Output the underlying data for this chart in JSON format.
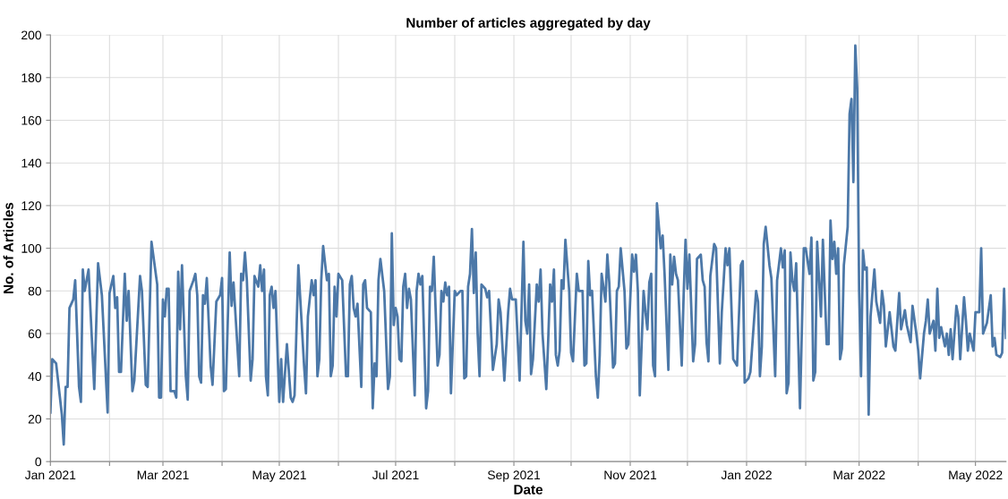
{
  "chart_data": {
    "type": "line",
    "title": "Number of articles aggregated by day",
    "xlabel": "Date",
    "ylabel": "No. of Articles",
    "xlim": [
      "2021-01-01",
      "2022-05-17"
    ],
    "xticks": [
      {
        "value": "2021-01-01",
        "label": "Jan 2021"
      },
      {
        "value": "2021-02-01",
        "label": null
      },
      {
        "value": "2021-03-01",
        "label": "Mar 2021"
      },
      {
        "value": "2021-04-01",
        "label": null
      },
      {
        "value": "2021-05-01",
        "label": "May 2021"
      },
      {
        "value": "2021-06-01",
        "label": null
      },
      {
        "value": "2021-07-01",
        "label": "Jul 2021"
      },
      {
        "value": "2021-08-01",
        "label": null
      },
      {
        "value": "2021-09-01",
        "label": "Sep 2021"
      },
      {
        "value": "2021-10-01",
        "label": null
      },
      {
        "value": "2021-11-01",
        "label": "Nov 2021"
      },
      {
        "value": "2021-12-01",
        "label": null
      },
      {
        "value": "2022-01-01",
        "label": "Jan 2022"
      },
      {
        "value": "2022-02-01",
        "label": null
      },
      {
        "value": "2022-03-01",
        "label": "Mar 2022"
      },
      {
        "value": "2022-04-01",
        "label": null
      },
      {
        "value": "2022-05-01",
        "label": "May 2022"
      }
    ],
    "ylim": [
      0,
      200
    ],
    "yticks": [
      0,
      20,
      40,
      60,
      80,
      100,
      120,
      140,
      160,
      180,
      200
    ],
    "grid": true,
    "series": [
      {
        "color": "#4c78a8",
        "x": [
          "2021-01-01",
          "2021-01-02",
          "2021-01-04",
          "2021-01-07",
          "2021-01-08",
          "2021-01-09",
          "2021-01-10",
          "2021-01-11",
          "2021-01-13",
          "2021-01-14",
          "2021-01-16",
          "2021-01-17",
          "2021-01-18",
          "2021-01-19",
          "2021-01-21",
          "2021-01-24",
          "2021-01-26",
          "2021-01-28",
          "2021-01-31",
          "2021-02-01",
          "2021-02-03",
          "2021-02-04",
          "2021-02-05",
          "2021-02-06",
          "2021-02-07",
          "2021-02-09",
          "2021-02-10",
          "2021-02-11",
          "2021-02-13",
          "2021-02-14",
          "2021-02-17",
          "2021-02-18",
          "2021-02-20",
          "2021-02-21",
          "2021-02-23",
          "2021-02-26",
          "2021-02-27",
          "2021-02-28",
          "2021-03-01",
          "2021-03-02",
          "2021-03-03",
          "2021-03-04",
          "2021-03-05",
          "2021-03-07",
          "2021-03-08",
          "2021-03-09",
          "2021-03-10",
          "2021-03-11",
          "2021-03-13",
          "2021-03-14",
          "2021-03-15",
          "2021-03-17",
          "2021-03-18",
          "2021-03-19",
          "2021-03-20",
          "2021-03-21",
          "2021-03-22",
          "2021-03-23",
          "2021-03-24",
          "2021-03-26",
          "2021-03-27",
          "2021-03-29",
          "2021-03-31",
          "2021-04-01",
          "2021-04-02",
          "2021-04-03",
          "2021-04-05",
          "2021-04-06",
          "2021-04-07",
          "2021-04-10",
          "2021-04-11",
          "2021-04-12",
          "2021-04-13",
          "2021-04-14",
          "2021-04-16",
          "2021-04-17",
          "2021-04-18",
          "2021-04-20",
          "2021-04-21",
          "2021-04-22",
          "2021-04-23",
          "2021-04-24",
          "2021-04-25",
          "2021-04-26",
          "2021-04-27",
          "2021-04-28",
          "2021-04-29",
          "2021-05-01",
          "2021-05-02",
          "2021-05-03",
          "2021-05-05",
          "2021-05-07",
          "2021-05-08",
          "2021-05-09",
          "2021-05-11",
          "2021-05-14",
          "2021-05-15",
          "2021-05-16",
          "2021-05-18",
          "2021-05-19",
          "2021-05-20",
          "2021-05-21",
          "2021-05-22",
          "2021-05-23",
          "2021-05-24",
          "2021-05-26",
          "2021-05-27",
          "2021-05-28",
          "2021-05-29",
          "2021-05-30",
          "2021-05-31",
          "2021-06-01",
          "2021-06-03",
          "2021-06-05",
          "2021-06-06",
          "2021-06-07",
          "2021-06-08",
          "2021-06-09",
          "2021-06-10",
          "2021-06-11",
          "2021-06-13",
          "2021-06-14",
          "2021-06-15",
          "2021-06-16",
          "2021-06-18",
          "2021-06-19",
          "2021-06-20",
          "2021-06-21",
          "2021-06-22",
          "2021-06-23",
          "2021-06-25",
          "2021-06-27",
          "2021-06-28",
          "2021-06-29",
          "2021-06-30",
          "2021-07-01",
          "2021-07-02",
          "2021-07-03",
          "2021-07-04",
          "2021-07-05",
          "2021-07-06",
          "2021-07-07",
          "2021-07-08",
          "2021-07-09",
          "2021-07-11",
          "2021-07-12",
          "2021-07-13",
          "2021-07-14",
          "2021-07-15",
          "2021-07-17",
          "2021-07-18",
          "2021-07-19",
          "2021-07-20",
          "2021-07-21",
          "2021-07-23",
          "2021-07-24",
          "2021-07-25",
          "2021-07-26",
          "2021-07-27",
          "2021-07-28",
          "2021-07-29",
          "2021-07-30",
          "2021-08-01",
          "2021-08-02",
          "2021-08-04",
          "2021-08-05",
          "2021-08-06",
          "2021-08-07",
          "2021-08-08",
          "2021-08-09",
          "2021-08-10",
          "2021-08-11",
          "2021-08-12",
          "2021-08-13",
          "2021-08-14",
          "2021-08-15",
          "2021-08-17",
          "2021-08-18",
          "2021-08-19",
          "2021-08-21",
          "2021-08-23",
          "2021-08-24",
          "2021-08-25",
          "2021-08-27",
          "2021-08-29",
          "2021-08-30",
          "2021-08-31",
          "2021-09-02",
          "2021-09-04",
          "2021-09-06",
          "2021-09-07",
          "2021-09-08",
          "2021-09-09",
          "2021-09-10",
          "2021-09-11",
          "2021-09-13",
          "2021-09-14",
          "2021-09-15",
          "2021-09-16",
          "2021-09-18",
          "2021-09-19",
          "2021-09-20",
          "2021-09-21",
          "2021-09-22",
          "2021-09-23",
          "2021-09-24",
          "2021-09-25",
          "2021-09-26",
          "2021-09-27",
          "2021-09-28",
          "2021-09-30",
          "2021-10-01",
          "2021-10-02",
          "2021-10-04",
          "2021-10-05",
          "2021-10-07",
          "2021-10-08",
          "2021-10-09",
          "2021-10-10",
          "2021-10-11",
          "2021-10-12",
          "2021-10-14",
          "2021-10-15",
          "2021-10-16",
          "2021-10-17",
          "2021-10-19",
          "2021-10-20",
          "2021-10-21",
          "2021-10-23",
          "2021-10-24",
          "2021-10-25",
          "2021-10-26",
          "2021-10-27",
          "2021-10-29",
          "2021-10-30",
          "2021-10-31",
          "2021-11-02",
          "2021-11-03",
          "2021-11-04",
          "2021-11-05",
          "2021-11-06",
          "2021-11-08",
          "2021-11-09",
          "2021-11-10",
          "2021-11-11",
          "2021-11-12",
          "2021-11-13",
          "2021-11-14",
          "2021-11-15",
          "2021-11-17",
          "2021-11-18",
          "2021-11-19",
          "2021-11-21",
          "2021-11-22",
          "2021-11-23",
          "2021-11-24",
          "2021-11-25",
          "2021-11-26",
          "2021-11-28",
          "2021-11-29",
          "2021-11-30",
          "2021-12-01",
          "2021-12-02",
          "2021-12-04",
          "2021-12-05",
          "2021-12-06",
          "2021-12-08",
          "2021-12-09",
          "2021-12-10",
          "2021-12-11",
          "2021-12-12",
          "2021-12-13",
          "2021-12-15",
          "2021-12-16",
          "2021-12-18",
          "2021-12-19",
          "2021-12-21",
          "2021-12-22",
          "2021-12-23",
          "2021-12-25",
          "2021-12-27",
          "2021-12-29",
          "2021-12-30",
          "2021-12-31",
          "2022-01-02",
          "2022-01-03",
          "2022-01-06",
          "2022-01-07",
          "2022-01-08",
          "2022-01-09",
          "2022-01-10",
          "2022-01-11",
          "2022-01-13",
          "2022-01-14",
          "2022-01-16",
          "2022-01-17",
          "2022-01-19",
          "2022-01-20",
          "2022-01-21",
          "2022-01-22",
          "2022-01-23",
          "2022-01-24",
          "2022-01-25",
          "2022-01-26",
          "2022-01-27",
          "2022-01-29",
          "2022-01-31",
          "2022-02-01",
          "2022-02-03",
          "2022-02-04",
          "2022-02-05",
          "2022-02-06",
          "2022-02-07",
          "2022-02-09",
          "2022-02-10",
          "2022-02-12",
          "2022-02-13",
          "2022-02-14",
          "2022-02-15",
          "2022-02-16",
          "2022-02-17",
          "2022-02-18",
          "2022-02-19",
          "2022-02-20",
          "2022-02-21",
          "2022-02-23",
          "2022-02-24",
          "2022-02-25",
          "2022-02-26",
          "2022-02-27",
          "2022-02-28",
          "2022-03-01",
          "2022-03-02",
          "2022-03-03",
          "2022-03-04",
          "2022-03-05",
          "2022-03-06",
          "2022-03-07",
          "2022-03-09",
          "2022-03-10",
          "2022-03-12",
          "2022-03-13",
          "2022-03-14",
          "2022-03-15",
          "2022-03-17",
          "2022-03-19",
          "2022-03-20",
          "2022-03-22",
          "2022-03-23",
          "2022-03-25",
          "2022-03-26",
          "2022-03-28",
          "2022-03-29",
          "2022-03-31",
          "2022-04-01",
          "2022-04-02",
          "2022-04-04",
          "2022-04-05",
          "2022-04-06",
          "2022-04-07",
          "2022-04-09",
          "2022-04-10",
          "2022-04-11",
          "2022-04-12",
          "2022-04-13",
          "2022-04-15",
          "2022-04-16",
          "2022-04-17",
          "2022-04-18",
          "2022-04-19",
          "2022-04-21",
          "2022-04-22",
          "2022-04-23",
          "2022-04-25",
          "2022-04-26",
          "2022-04-27",
          "2022-04-28",
          "2022-04-30",
          "2022-05-01",
          "2022-05-03",
          "2022-05-04",
          "2022-05-05",
          "2022-05-07",
          "2022-05-09",
          "2022-05-10",
          "2022-05-11",
          "2022-05-12",
          "2022-05-14",
          "2022-05-15",
          "2022-05-16",
          "2022-05-17"
        ],
        "values": [
          23,
          48,
          46,
          22,
          8,
          35,
          35,
          72,
          76,
          85,
          35,
          28,
          90,
          80,
          90,
          34,
          93,
          78,
          23,
          79,
          87,
          72,
          77,
          42,
          42,
          88,
          66,
          80,
          33,
          38,
          87,
          80,
          36,
          35,
          103,
          83,
          30,
          30,
          76,
          68,
          81,
          81,
          33,
          33,
          30,
          89,
          62,
          92,
          40,
          29,
          80,
          85,
          88,
          78,
          40,
          37,
          78,
          74,
          86,
          45,
          36,
          75,
          78,
          86,
          33,
          34,
          98,
          73,
          84,
          40,
          88,
          85,
          98,
          85,
          38,
          48,
          87,
          82,
          92,
          80,
          90,
          40,
          31,
          78,
          82,
          72,
          80,
          28,
          48,
          28,
          55,
          30,
          28,
          31,
          92,
          45,
          32,
          68,
          85,
          78,
          85,
          40,
          48,
          85,
          101,
          85,
          88,
          40,
          45,
          82,
          68,
          88,
          85,
          40,
          40,
          83,
          87,
          72,
          68,
          74,
          35,
          83,
          85,
          72,
          70,
          25,
          46,
          40,
          85,
          95,
          80,
          34,
          40,
          107,
          64,
          72,
          68,
          48,
          47,
          82,
          88,
          72,
          81,
          76,
          31,
          80,
          88,
          83,
          87,
          25,
          33,
          82,
          80,
          96,
          45,
          50,
          80,
          75,
          84,
          78,
          82,
          32,
          80,
          78,
          80,
          80,
          39,
          40,
          82,
          88,
          109,
          79,
          98,
          60,
          40,
          83,
          81,
          77,
          80,
          43,
          55,
          76,
          70,
          38,
          70,
          81,
          76,
          76,
          38,
          103,
          66,
          60,
          83,
          41,
          48,
          83,
          75,
          90,
          60,
          34,
          57,
          83,
          75,
          90,
          50,
          45,
          52,
          85,
          81,
          104,
          80,
          51,
          47,
          88,
          80,
          80,
          45,
          46,
          94,
          78,
          80,
          40,
          30,
          50,
          88,
          75,
          97,
          84,
          44,
          46,
          80,
          82,
          100,
          80,
          53,
          55,
          97,
          89,
          97,
          80,
          31,
          80,
          70,
          62,
          84,
          88,
          45,
          40,
          121,
          100,
          106,
          88,
          43,
          97,
          83,
          96,
          88,
          85,
          45,
          78,
          104,
          81,
          97,
          47,
          55,
          95,
          97,
          85,
          82,
          56,
          47,
          87,
          102,
          100,
          46,
          70,
          100,
          92,
          100,
          48,
          45,
          92,
          94,
          37,
          39,
          42,
          80,
          75,
          40,
          54,
          102,
          110,
          92,
          86,
          40,
          85,
          100,
          91,
          99,
          32,
          37,
          98,
          85,
          80,
          93,
          25,
          100,
          100,
          88,
          105,
          38,
          42,
          103,
          68,
          104,
          55,
          55,
          113,
          95,
          103,
          88,
          100,
          48,
          53,
          92,
          110,
          163,
          170,
          131,
          195,
          175,
          80,
          40,
          99,
          90,
          91,
          22,
          68,
          90,
          75,
          65,
          80,
          73,
          54,
          70,
          54,
          52,
          79,
          62,
          71,
          64,
          56,
          73,
          60,
          52,
          39,
          60,
          66,
          76,
          60,
          66,
          52,
          81,
          58,
          63,
          54,
          60,
          50,
          62,
          48,
          73,
          68,
          48,
          77,
          66,
          52,
          60,
          52,
          70,
          70,
          100,
          60,
          65,
          78,
          54,
          58,
          50,
          49,
          51,
          81,
          58
        ]
      }
    ]
  }
}
